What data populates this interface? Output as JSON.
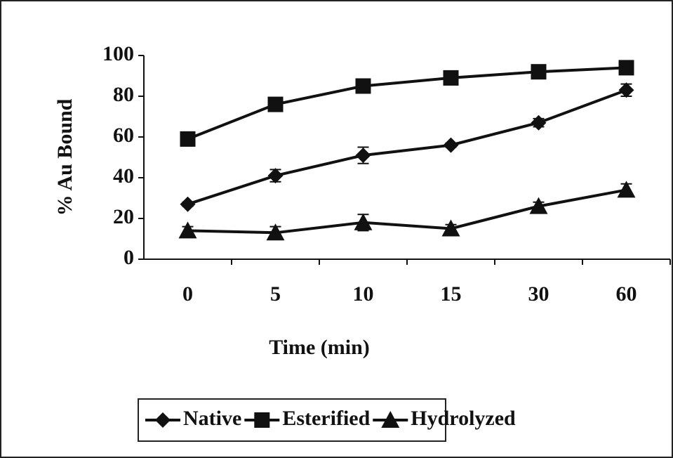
{
  "chart_data": {
    "type": "line",
    "y_label": "% Au Bound",
    "x_label": "Time (min)",
    "categories": [
      "0",
      "5",
      "10",
      "15",
      "30",
      "60"
    ],
    "ylim": [
      0,
      100
    ],
    "yticks": [
      0,
      20,
      40,
      60,
      80,
      100
    ],
    "grid": false,
    "legend": "bottom",
    "series": [
      {
        "name": "Native",
        "color": "#111111",
        "marker": "diamond",
        "values": [
          27,
          41,
          51,
          56,
          67,
          83
        ],
        "errors": [
          1,
          3,
          4,
          1,
          2,
          3
        ]
      },
      {
        "name": "Esterified",
        "color": "#111111",
        "marker": "square",
        "values": [
          59,
          76,
          85,
          89,
          92,
          94
        ],
        "errors": [
          1,
          1,
          1,
          1,
          1,
          1
        ]
      },
      {
        "name": "Hydrolyzed",
        "color": "#111111",
        "marker": "triangle",
        "values": [
          14,
          13,
          18,
          15,
          26,
          34
        ],
        "errors": [
          2,
          3,
          4,
          2,
          2,
          3
        ]
      }
    ]
  }
}
